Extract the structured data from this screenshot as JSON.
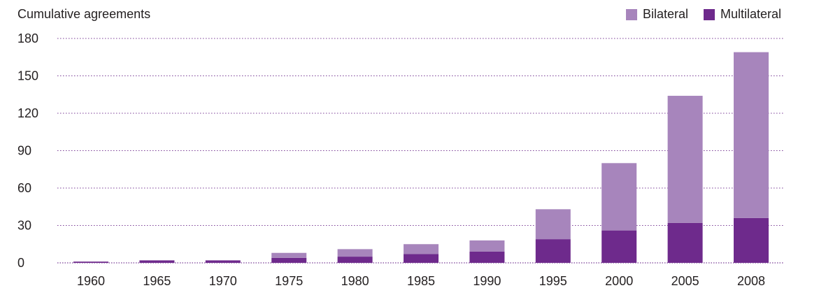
{
  "chart_data": {
    "type": "bar",
    "stacked": true,
    "ylabel": "Cumulative agreements",
    "xlabel": "",
    "title": "",
    "categories": [
      "1960",
      "1965",
      "1970",
      "1975",
      "1980",
      "1985",
      "1990",
      "1995",
      "2000",
      "2005",
      "2008"
    ],
    "series": [
      {
        "name": "Multilateral",
        "color": "#6e2a8c",
        "values": [
          1,
          2,
          2,
          4,
          5,
          7,
          9,
          19,
          26,
          32,
          36
        ]
      },
      {
        "name": "Bilateral",
        "color": "#a785bc",
        "values": [
          0,
          0,
          0,
          4,
          6,
          8,
          9,
          24,
          54,
          102,
          133
        ]
      }
    ],
    "ylim": [
      0,
      180
    ],
    "yticks": [
      0,
      30,
      60,
      90,
      120,
      150,
      180
    ],
    "grid": "horizontal dotted",
    "legend_position": "top-right"
  }
}
